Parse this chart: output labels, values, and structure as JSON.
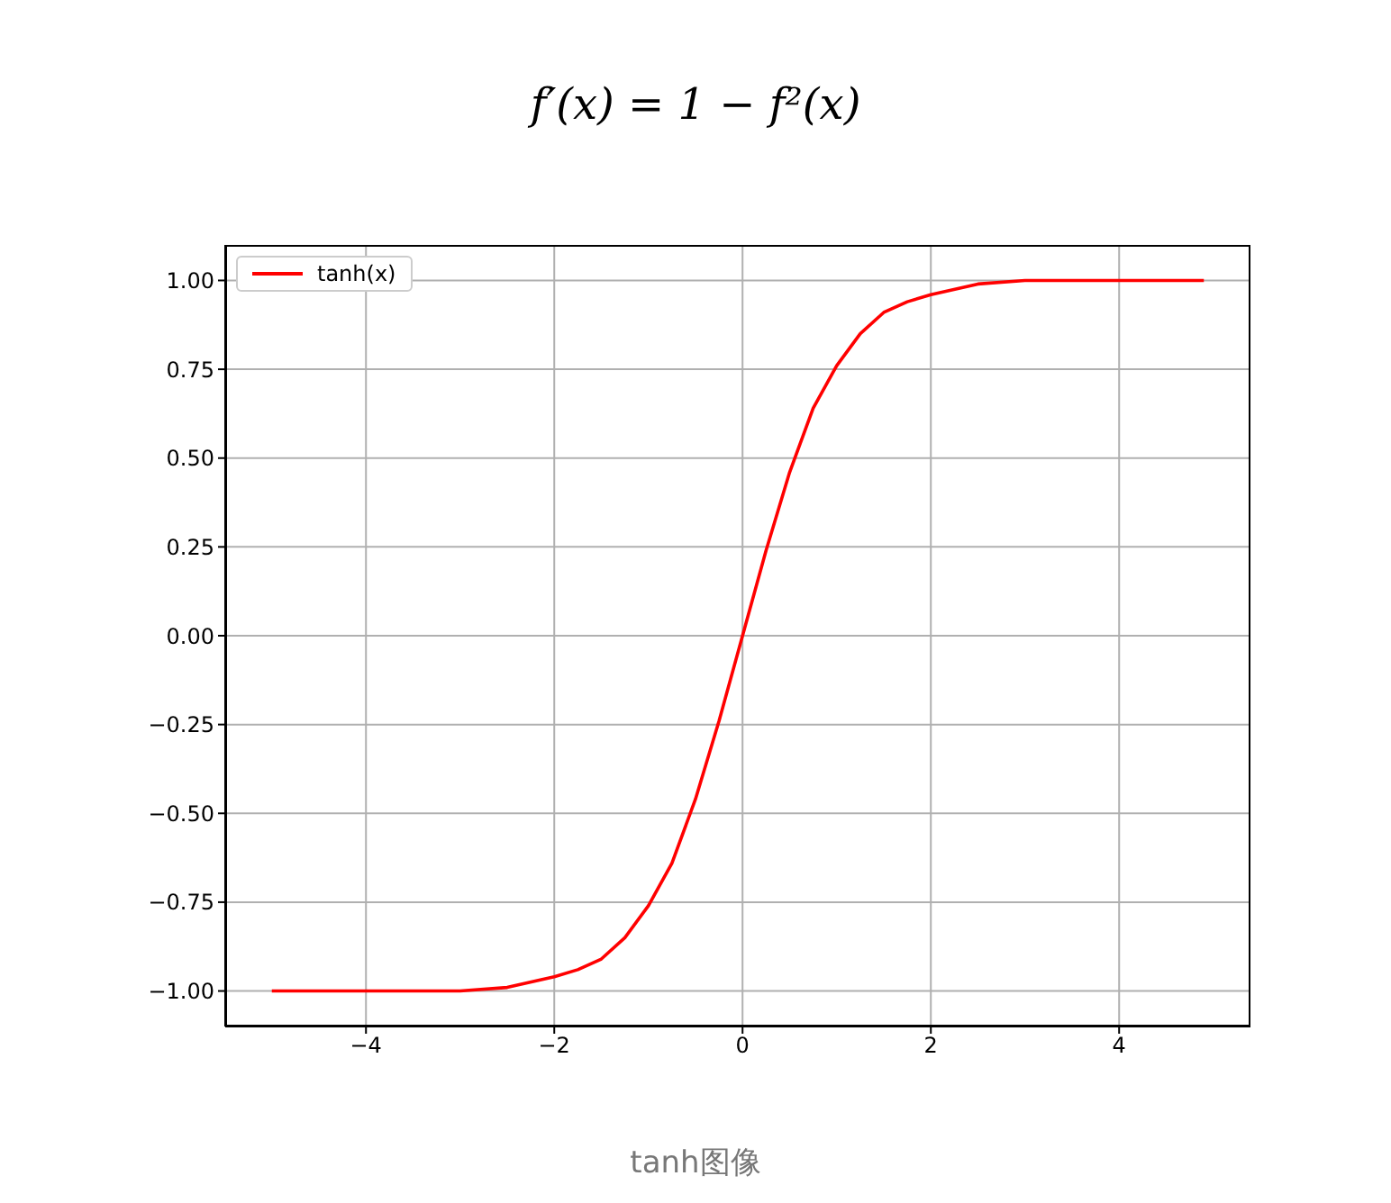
{
  "chart_data": {
    "type": "line",
    "title": "f′(x) = 1 − f²(x)",
    "annotations": [
      "tanh图像"
    ],
    "x": [
      -5,
      -4.5,
      -4,
      -3.5,
      -3,
      -2.5,
      -2,
      -1.75,
      -1.5,
      -1.25,
      -1,
      -0.75,
      -0.5,
      -0.25,
      0,
      0.25,
      0.5,
      0.75,
      1,
      1.25,
      1.5,
      1.75,
      2,
      2.5,
      3,
      3.5,
      4,
      4.5,
      4.9
    ],
    "series": [
      {
        "name": "tanh(x)",
        "color": "#ff0000",
        "values": [
          -1,
          -1,
          -1,
          -1,
          -1,
          -0.99,
          -0.96,
          -0.94,
          -0.91,
          -0.85,
          -0.76,
          -0.64,
          -0.46,
          -0.24,
          0,
          0.24,
          0.46,
          0.64,
          0.76,
          0.85,
          0.91,
          0.94,
          0.96,
          0.99,
          1,
          1,
          1,
          1,
          1
        ]
      }
    ],
    "xlim": [
      -5.495,
      5.395
    ],
    "ylim": [
      -1.1,
      1.1
    ],
    "xticks": [
      {
        "value": -4,
        "label": "−4"
      },
      {
        "value": -2,
        "label": "−2"
      },
      0,
      2,
      4
    ],
    "yticks": [
      {
        "value": -1,
        "label": "−1.00"
      },
      {
        "value": -0.75,
        "label": "−0.75"
      },
      {
        "value": -0.5,
        "label": "−0.50"
      },
      {
        "value": -0.25,
        "label": "−0.25"
      },
      {
        "value": 0,
        "label": "0.00"
      },
      {
        "value": 0.25,
        "label": "0.25"
      },
      {
        "value": 0.5,
        "label": "0.50"
      },
      {
        "value": 0.75,
        "label": "0.75"
      },
      {
        "value": 1,
        "label": "1.00"
      }
    ],
    "grid": true,
    "legend": "top left",
    "marker": "none",
    "line_style": "solid"
  }
}
